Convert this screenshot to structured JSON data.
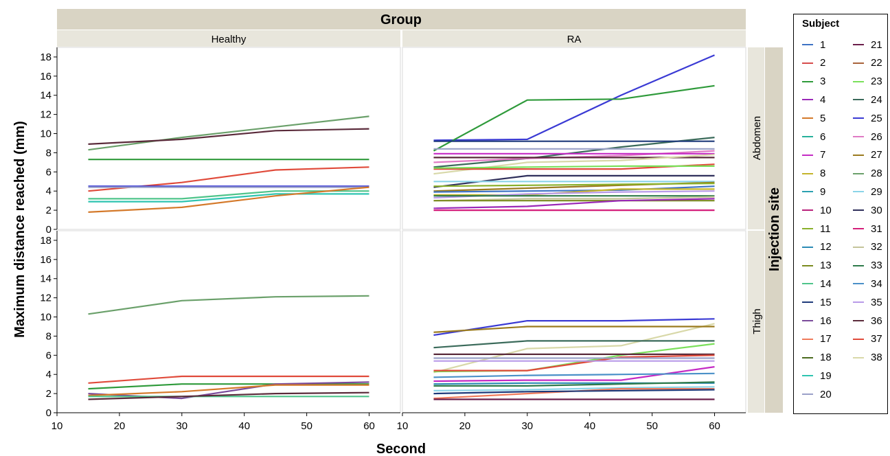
{
  "chart_data": {
    "type": "line",
    "column_facet_title": "Group",
    "row_facet_title": "Injection site",
    "columns": [
      "Healthy",
      "RA"
    ],
    "rows": [
      "Abdomen",
      "Thigh"
    ],
    "xlabel": "Second",
    "ylabel": "Maximum distance reached (mm)",
    "xlim": [
      10,
      65
    ],
    "ylim": [
      0,
      19
    ],
    "x_ticks": [
      "10",
      "20",
      "30",
      "40",
      "50",
      "60"
    ],
    "y_ticks": [
      "0",
      "2",
      "4",
      "6",
      "8",
      "10",
      "12",
      "14",
      "16",
      "18"
    ],
    "x": [
      15,
      30,
      45,
      60
    ],
    "legend": {
      "title": "Subject",
      "entries": [
        "1",
        "2",
        "3",
        "4",
        "5",
        "6",
        "7",
        "8",
        "9",
        "10",
        "11",
        "12",
        "13",
        "14",
        "15",
        "16",
        "17",
        "18",
        "19",
        "20",
        "21",
        "22",
        "23",
        "24",
        "25",
        "26",
        "27",
        "28",
        "29",
        "30",
        "31",
        "32",
        "33",
        "34",
        "35",
        "36",
        "37",
        "38"
      ]
    },
    "subject_colors": {
      "1": "#3d72c4",
      "2": "#d64a4a",
      "3": "#2e9a3a",
      "4": "#9a28b8",
      "5": "#d4792a",
      "6": "#26b09a",
      "7": "#c42ac4",
      "8": "#c4b42a",
      "9": "#2aa0b0",
      "10": "#b8207a",
      "11": "#8ab02a",
      "12": "#2a8ab4",
      "13": "#7a8a1e",
      "14": "#4ec48a",
      "15": "#1e3a7a",
      "16": "#7a4a9a",
      "17": "#f07a5a",
      "18": "#4a6a1e",
      "19": "#2ec4b0",
      "20": "#9aa0c8",
      "21": "#6a1e4a",
      "22": "#a8623a",
      "23": "#7ae05a",
      "24": "#3a6a5a",
      "25": "#3a3ad4",
      "26": "#e07ac4",
      "27": "#9a7a1e",
      "28": "#6aa06a",
      "29": "#8ad4e8",
      "30": "#2e2e5a",
      "31": "#d41e7a",
      "32": "#c4c49a",
      "33": "#2e7a4a",
      "34": "#4a90c8",
      "35": "#b89ae8",
      "36": "#5a2a3a",
      "37": "#e04a3a",
      "38": "#d8d8a8"
    },
    "panels": [
      {
        "group": "Healthy",
        "site": "Abdomen",
        "series": [
          {
            "name": "28",
            "values": [
              8.3,
              9.6,
              10.7,
              11.8
            ]
          },
          {
            "name": "36",
            "values": [
              8.9,
              9.4,
              10.3,
              10.5
            ]
          },
          {
            "name": "3",
            "values": [
              7.3,
              7.3,
              7.3,
              7.3
            ]
          },
          {
            "name": "37",
            "values": [
              4.0,
              4.9,
              6.2,
              6.5
            ]
          },
          {
            "name": "25",
            "values": [
              4.5,
              4.5,
              4.5,
              4.5
            ]
          },
          {
            "name": "20",
            "values": [
              4.4,
              4.4,
              4.4,
              4.4
            ]
          },
          {
            "name": "14",
            "values": [
              3.2,
              3.2,
              4.0,
              4.0
            ]
          },
          {
            "name": "19",
            "values": [
              2.9,
              2.9,
              3.7,
              3.7
            ]
          },
          {
            "name": "5",
            "values": [
              1.8,
              2.3,
              3.5,
              4.4
            ]
          }
        ]
      },
      {
        "group": "RA",
        "site": "Abdomen",
        "series": [
          {
            "name": "25",
            "values": [
              9.3,
              9.4,
              14.0,
              18.2
            ]
          },
          {
            "name": "3",
            "values": [
              8.2,
              13.5,
              13.6,
              15.0
            ]
          },
          {
            "name": "24",
            "values": [
              6.5,
              7.4,
              8.6,
              9.6
            ]
          },
          {
            "name": "15",
            "values": [
              9.2,
              9.2,
              9.2,
              9.2
            ]
          },
          {
            "name": "20",
            "values": [
              8.4,
              8.4,
              8.4,
              8.4
            ]
          },
          {
            "name": "26",
            "values": [
              7.0,
              7.4,
              7.7,
              8.2
            ]
          },
          {
            "name": "7",
            "values": [
              7.9,
              7.9,
              7.9,
              7.9
            ]
          },
          {
            "name": "36",
            "values": [
              7.5,
              7.5,
              7.5,
              7.5
            ]
          },
          {
            "name": "38",
            "values": [
              5.8,
              7.0,
              7.2,
              7.8
            ]
          },
          {
            "name": "37",
            "values": [
              6.3,
              6.3,
              6.3,
              6.8
            ]
          },
          {
            "name": "23",
            "values": [
              6.4,
              6.5,
              6.6,
              6.6
            ]
          },
          {
            "name": "30",
            "values": [
              4.4,
              5.6,
              5.6,
              5.6
            ]
          },
          {
            "name": "29",
            "values": [
              5.0,
              5.0,
              5.0,
              5.0
            ]
          },
          {
            "name": "27",
            "values": [
              4.0,
              4.3,
              4.6,
              4.9
            ]
          },
          {
            "name": "11",
            "values": [
              4.5,
              4.6,
              4.7,
              4.8
            ]
          },
          {
            "name": "1",
            "values": [
              3.9,
              4.0,
              4.1,
              4.5
            ]
          },
          {
            "name": "8",
            "values": [
              3.6,
              3.6,
              4.2,
              4.2
            ]
          },
          {
            "name": "35",
            "values": [
              3.3,
              3.7,
              3.9,
              4.0
            ]
          },
          {
            "name": "33",
            "values": [
              3.5,
              3.5,
              3.5,
              3.5
            ]
          },
          {
            "name": "32",
            "values": [
              3.0,
              3.2,
              3.2,
              3.4
            ]
          },
          {
            "name": "13",
            "values": [
              3.0,
              3.0,
              3.0,
              3.0
            ]
          },
          {
            "name": "4",
            "values": [
              2.2,
              2.4,
              3.0,
              3.2
            ]
          },
          {
            "name": "31",
            "values": [
              2.0,
              2.0,
              2.0,
              2.0
            ]
          }
        ]
      },
      {
        "group": "Healthy",
        "site": "Thigh",
        "series": [
          {
            "name": "28",
            "values": [
              10.3,
              11.7,
              12.1,
              12.2
            ]
          },
          {
            "name": "37",
            "values": [
              3.1,
              3.8,
              3.8,
              3.8
            ]
          },
          {
            "name": "3",
            "values": [
              2.5,
              3.0,
              3.0,
              3.0
            ]
          },
          {
            "name": "16",
            "values": [
              2.0,
              1.5,
              3.0,
              3.2
            ]
          },
          {
            "name": "5",
            "values": [
              1.8,
              2.2,
              2.9,
              2.9
            ]
          },
          {
            "name": "14",
            "values": [
              1.7,
              1.7,
              1.7,
              1.7
            ]
          },
          {
            "name": "36",
            "values": [
              1.4,
              1.7,
              2.0,
              2.1
            ]
          }
        ]
      },
      {
        "group": "RA",
        "site": "Thigh",
        "series": [
          {
            "name": "25",
            "values": [
              8.1,
              9.6,
              9.6,
              9.8
            ]
          },
          {
            "name": "38",
            "values": [
              4.2,
              6.7,
              7.0,
              9.3
            ]
          },
          {
            "name": "27",
            "values": [
              8.4,
              9.0,
              9.0,
              9.0
            ]
          },
          {
            "name": "24",
            "values": [
              6.8,
              7.5,
              7.5,
              7.5
            ]
          },
          {
            "name": "23",
            "values": [
              4.3,
              4.4,
              6.0,
              7.2
            ]
          },
          {
            "name": "36",
            "values": [
              6.1,
              6.1,
              6.1,
              6.1
            ]
          },
          {
            "name": "37",
            "values": [
              4.4,
              4.4,
              5.8,
              6.0
            ]
          },
          {
            "name": "20",
            "values": [
              5.7,
              5.7,
              5.7,
              5.7
            ]
          },
          {
            "name": "35",
            "values": [
              5.4,
              5.4,
              5.4,
              5.4
            ]
          },
          {
            "name": "7",
            "values": [
              3.3,
              3.4,
              3.4,
              4.8
            ]
          },
          {
            "name": "34",
            "values": [
              3.7,
              3.9,
              4.0,
              4.1
            ]
          },
          {
            "name": "12",
            "values": [
              3.0,
              3.1,
              3.1,
              3.1
            ]
          },
          {
            "name": "33",
            "values": [
              2.8,
              2.8,
              3.0,
              3.2
            ]
          },
          {
            "name": "29",
            "values": [
              2.3,
              2.4,
              2.6,
              2.7
            ]
          },
          {
            "name": "17",
            "values": [
              1.5,
              2.0,
              2.5,
              2.5
            ]
          },
          {
            "name": "15",
            "values": [
              2.0,
              2.2,
              2.3,
              2.4
            ]
          },
          {
            "name": "21",
            "values": [
              1.4,
              1.4,
              1.4,
              1.4
            ]
          }
        ]
      }
    ]
  }
}
